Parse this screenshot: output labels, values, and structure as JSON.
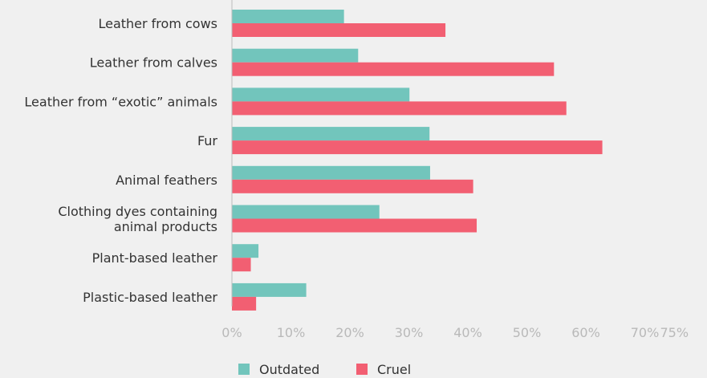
{
  "chart_data": {
    "type": "bar",
    "orientation": "horizontal",
    "title": "",
    "xlabel": "",
    "ylabel": "",
    "xlim": [
      0,
      75
    ],
    "grid": false,
    "legend_position": "bottom",
    "categories": [
      [
        "Leather from cows"
      ],
      [
        "Leather from calves"
      ],
      [
        "Leather from “exotic” animals"
      ],
      [
        "Fur"
      ],
      [
        "Animal feathers"
      ],
      [
        "Clothing dyes containing",
        "animal products"
      ],
      [
        "Plant-based leather"
      ],
      [
        "Plastic-based leather"
      ]
    ],
    "x_ticks": [
      "0%",
      "10%",
      "20%",
      "30%",
      "40%",
      "50%",
      "60%",
      "70%",
      "75%"
    ],
    "x_tick_values": [
      0,
      10,
      20,
      30,
      40,
      50,
      60,
      70,
      75
    ],
    "series": [
      {
        "name": "Outdated",
        "color": "#72c5bc",
        "values": [
          19,
          21.4,
          30.1,
          33.5,
          33.6,
          25,
          4.5,
          12.6
        ]
      },
      {
        "name": "Cruel",
        "color": "#f25f72",
        "values": [
          36.2,
          54.6,
          56.7,
          62.8,
          40.9,
          41.5,
          3.2,
          4.1
        ]
      }
    ]
  }
}
